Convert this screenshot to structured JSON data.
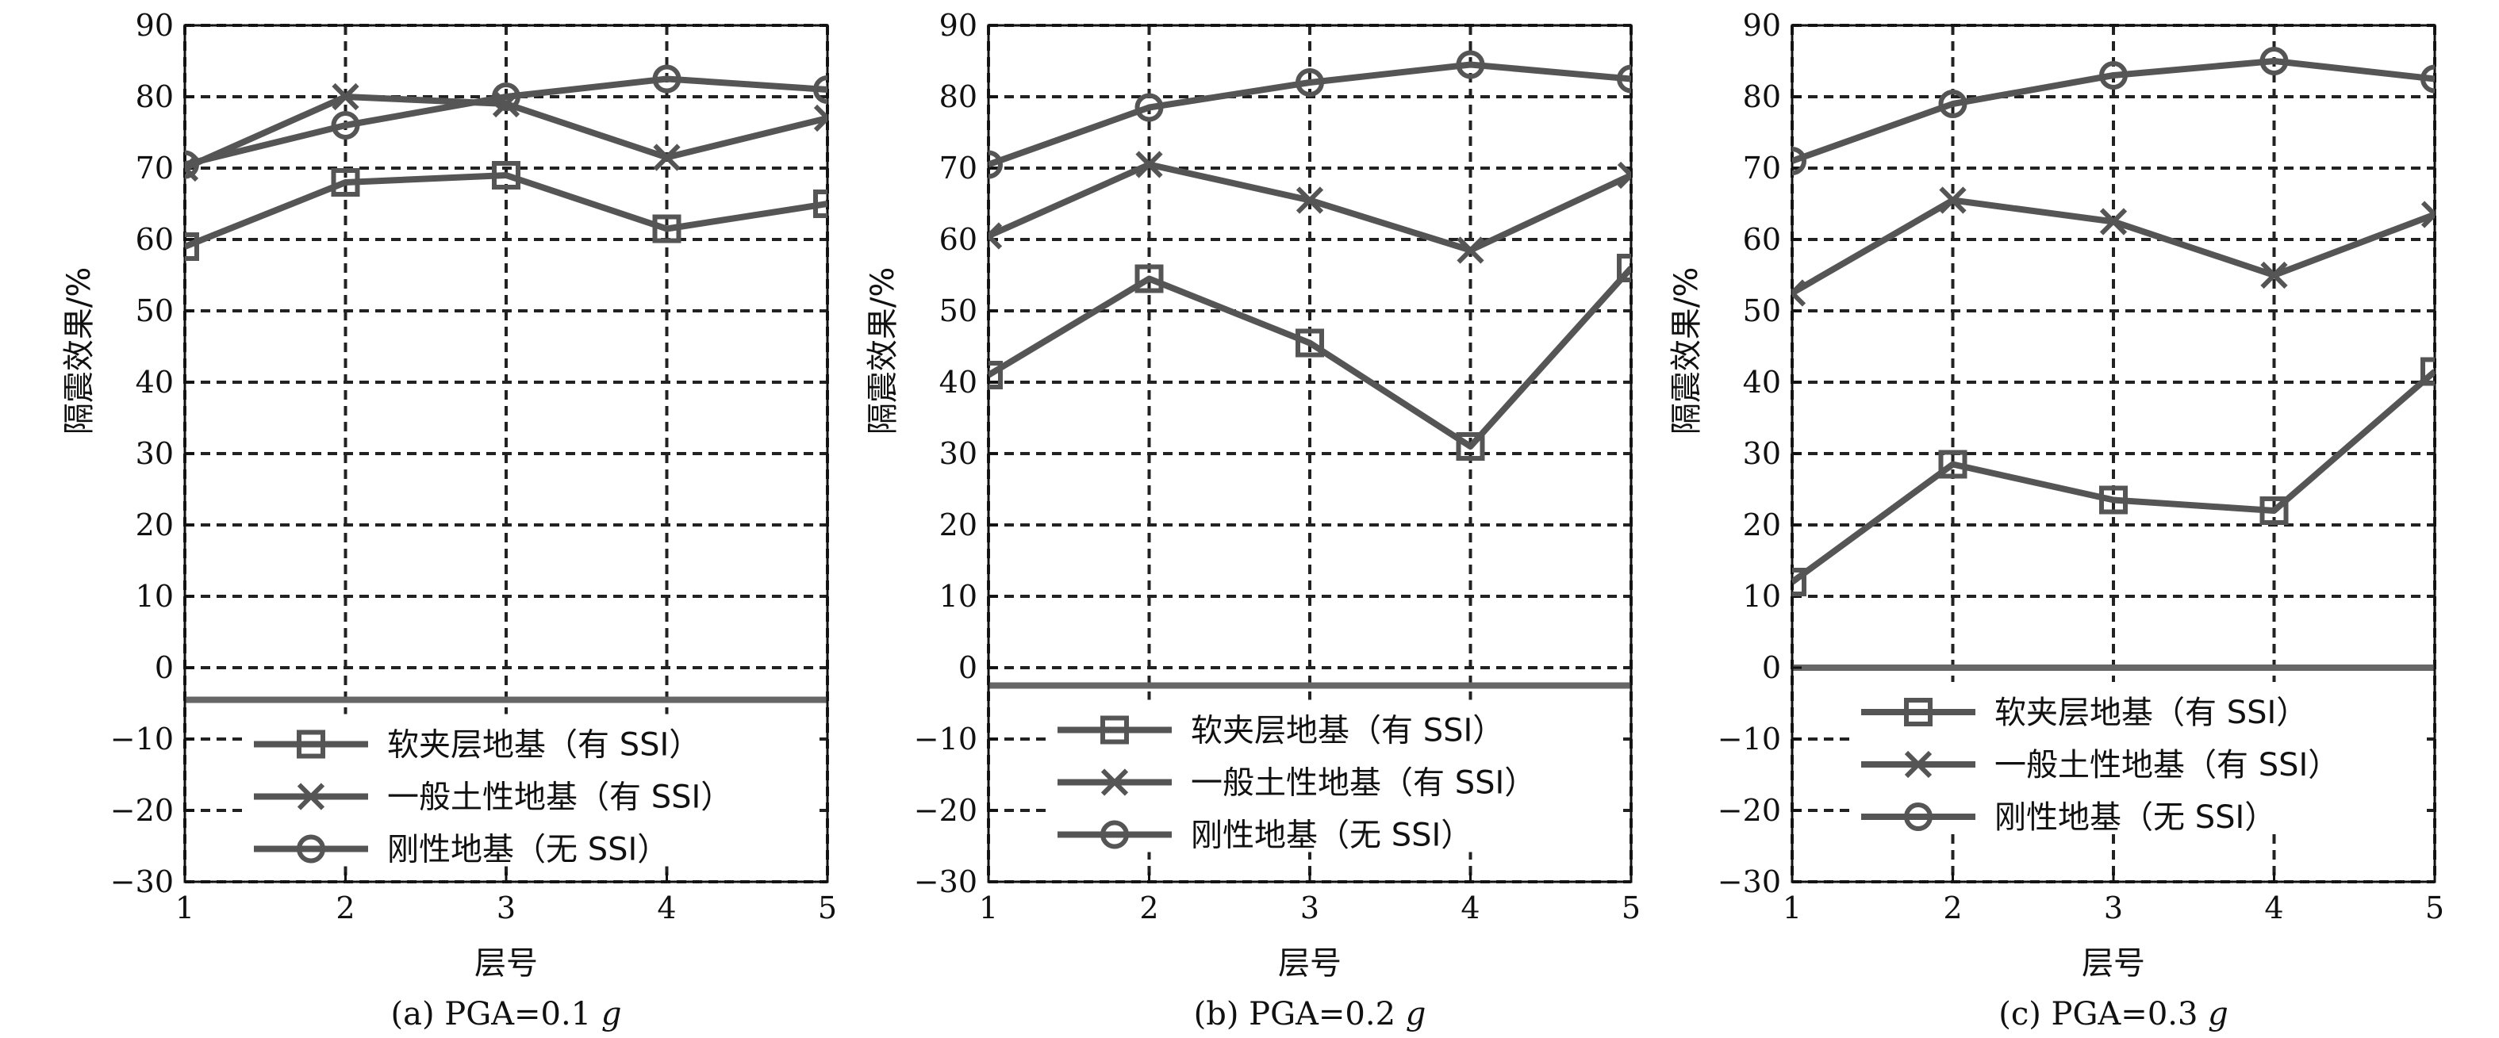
{
  "chart_data": [
    {
      "type": "line",
      "caption": "(a) PGA=0.1 g",
      "caption_prefix": "(a) PGA=0.1 ",
      "caption_italic": "g",
      "xlabel": "层号",
      "ylabel": "隔震效果/%",
      "x": [
        1,
        2,
        3,
        4,
        5
      ],
      "xlim": [
        1,
        5
      ],
      "ylim": [
        -30,
        90
      ],
      "yticks": [
        -30,
        -20,
        -10,
        0,
        10,
        20,
        30,
        40,
        50,
        60,
        70,
        80,
        90
      ],
      "grid": true,
      "baseline": -4.5,
      "legend_position": "lower-center",
      "series": [
        {
          "name": "软夹层地基（有 SSI）",
          "marker": "square",
          "values": [
            59,
            68,
            69,
            61.5,
            65
          ]
        },
        {
          "name": "一般土性地基（有 SSI）",
          "marker": "x",
          "values": [
            70,
            80,
            79,
            71.5,
            77
          ]
        },
        {
          "name": "刚性地基（无 SSI）",
          "marker": "circle",
          "values": [
            70.5,
            76,
            80,
            82.5,
            81
          ]
        }
      ]
    },
    {
      "type": "line",
      "caption": "(b) PGA=0.2 g",
      "caption_prefix": "(b) PGA=0.2 ",
      "caption_italic": "g",
      "xlabel": "层号",
      "ylabel": "隔震效果/%",
      "x": [
        1,
        2,
        3,
        4,
        5
      ],
      "xlim": [
        1,
        5
      ],
      "ylim": [
        -30,
        90
      ],
      "yticks": [
        -30,
        -20,
        -10,
        0,
        10,
        20,
        30,
        40,
        50,
        60,
        70,
        80,
        90
      ],
      "grid": true,
      "baseline": -2.5,
      "legend_position": "lower-center",
      "series": [
        {
          "name": "软夹层地基（有 SSI）",
          "marker": "square",
          "values": [
            41,
            54.5,
            45.5,
            31,
            56
          ]
        },
        {
          "name": "一般土性地基（有 SSI）",
          "marker": "x",
          "values": [
            60.5,
            70.5,
            65.5,
            58.5,
            69
          ]
        },
        {
          "name": "刚性地基（无 SSI）",
          "marker": "circle",
          "values": [
            70.5,
            78.5,
            82,
            84.5,
            82.5
          ]
        }
      ]
    },
    {
      "type": "line",
      "caption": "(c) PGA=0.3 g",
      "caption_prefix": "(c) PGA=0.3 ",
      "caption_italic": "g",
      "xlabel": "层号",
      "ylabel": "隔震效果/%",
      "x": [
        1,
        2,
        3,
        4,
        5
      ],
      "xlim": [
        1,
        5
      ],
      "ylim": [
        -30,
        90
      ],
      "yticks": [
        -30,
        -20,
        -10,
        0,
        10,
        20,
        30,
        40,
        50,
        60,
        70,
        80,
        90
      ],
      "grid": true,
      "baseline": 0,
      "legend_position": "lower-center",
      "series": [
        {
          "name": "软夹层地基（有 SSI）",
          "marker": "square",
          "values": [
            12,
            28.5,
            23.5,
            22,
            41.5
          ]
        },
        {
          "name": "一般土性地基（有 SSI）",
          "marker": "x",
          "values": [
            52.5,
            65.5,
            62.5,
            55,
            63.5
          ]
        },
        {
          "name": "刚性地基（无 SSI）",
          "marker": "circle",
          "values": [
            71,
            79,
            83,
            85,
            82.5
          ]
        }
      ]
    }
  ],
  "colors": {
    "line": "#555555",
    "grid": "#222222",
    "axis": "#111111",
    "baseline": "#666666"
  }
}
